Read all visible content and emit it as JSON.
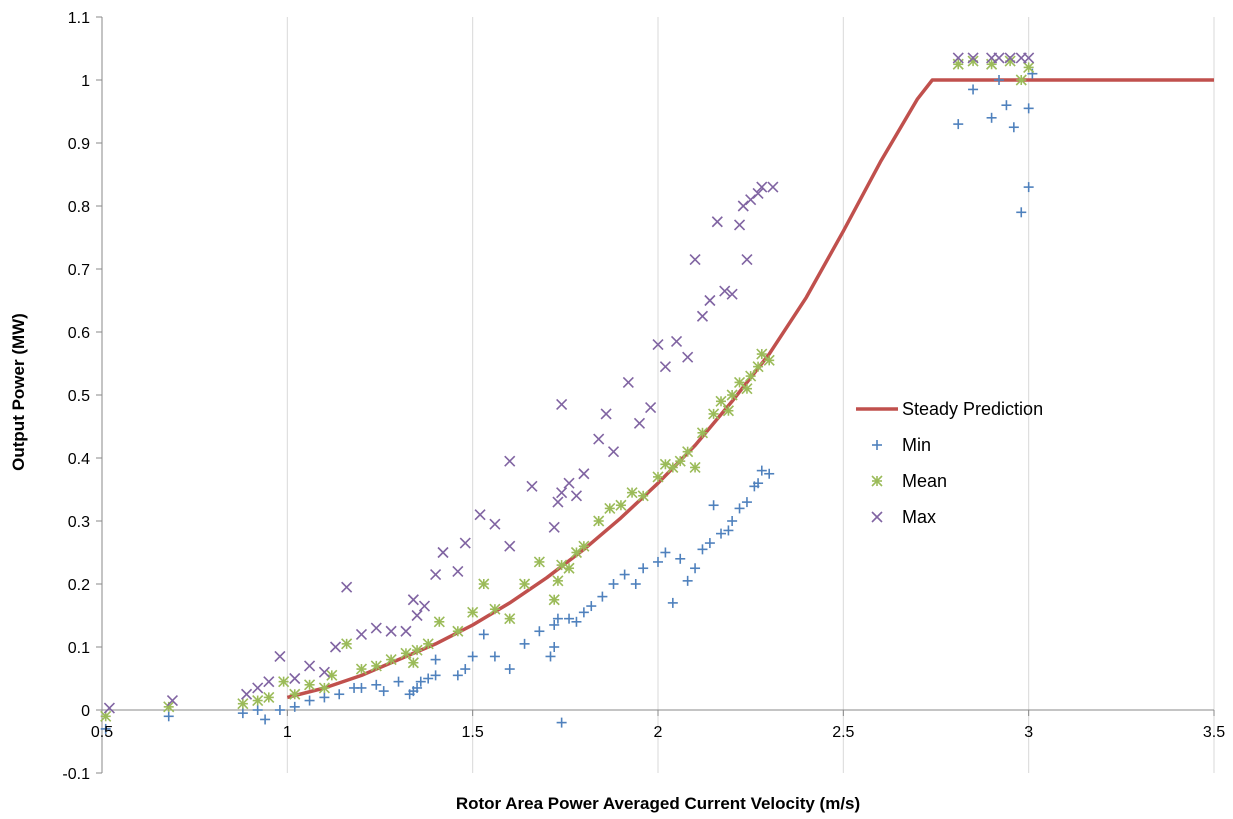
{
  "chart_data": {
    "type": "scatter",
    "title": "",
    "xlabel": "Rotor Area Power Averaged Current Velocity (m/s)",
    "ylabel": "Output Power (MW)",
    "xlim": [
      0.5,
      3.5
    ],
    "ylim": [
      -0.1,
      1.1
    ],
    "xticks": [
      "0.5",
      "1",
      "1.5",
      "2",
      "2.5",
      "3",
      "3.5"
    ],
    "yticks": [
      "-0.1",
      "0",
      "0.1",
      "0.2",
      "0.3",
      "0.4",
      "0.5",
      "0.6",
      "0.7",
      "0.8",
      "0.9",
      "1",
      "1.1"
    ],
    "grid": "vertical",
    "legend_position": "right-center",
    "series": [
      {
        "name": "Steady Prediction",
        "style": "line",
        "color": "#c0504d",
        "points": [
          [
            1.0,
            0.02
          ],
          [
            1.1,
            0.035
          ],
          [
            1.2,
            0.055
          ],
          [
            1.3,
            0.08
          ],
          [
            1.4,
            0.105
          ],
          [
            1.5,
            0.135
          ],
          [
            1.6,
            0.17
          ],
          [
            1.7,
            0.21
          ],
          [
            1.8,
            0.255
          ],
          [
            1.9,
            0.305
          ],
          [
            2.0,
            0.36
          ],
          [
            2.1,
            0.42
          ],
          [
            2.2,
            0.49
          ],
          [
            2.3,
            0.565
          ],
          [
            2.4,
            0.655
          ],
          [
            2.5,
            0.76
          ],
          [
            2.6,
            0.87
          ],
          [
            2.7,
            0.97
          ],
          [
            2.74,
            1.0
          ],
          [
            3.5,
            1.0
          ]
        ]
      },
      {
        "name": "Min",
        "style": "plus",
        "color": "#4f81bd",
        "points": [
          [
            0.51,
            -0.03
          ],
          [
            0.68,
            -0.01
          ],
          [
            0.88,
            -0.005
          ],
          [
            0.92,
            0.0
          ],
          [
            0.94,
            -0.015
          ],
          [
            0.98,
            0.0
          ],
          [
            1.02,
            0.005
          ],
          [
            1.06,
            0.015
          ],
          [
            1.1,
            0.02
          ],
          [
            1.14,
            0.025
          ],
          [
            1.18,
            0.035
          ],
          [
            1.2,
            0.035
          ],
          [
            1.24,
            0.04
          ],
          [
            1.26,
            0.03
          ],
          [
            1.3,
            0.045
          ],
          [
            1.33,
            0.025
          ],
          [
            1.34,
            0.03
          ],
          [
            1.35,
            0.035
          ],
          [
            1.36,
            0.045
          ],
          [
            1.38,
            0.05
          ],
          [
            1.4,
            0.055
          ],
          [
            1.4,
            0.08
          ],
          [
            1.46,
            0.055
          ],
          [
            1.48,
            0.065
          ],
          [
            1.5,
            0.085
          ],
          [
            1.53,
            0.12
          ],
          [
            1.56,
            0.085
          ],
          [
            1.6,
            0.065
          ],
          [
            1.64,
            0.105
          ],
          [
            1.68,
            0.125
          ],
          [
            1.71,
            0.085
          ],
          [
            1.72,
            0.1
          ],
          [
            1.72,
            0.135
          ],
          [
            1.73,
            0.145
          ],
          [
            1.74,
            -0.02
          ],
          [
            1.76,
            0.145
          ],
          [
            1.78,
            0.14
          ],
          [
            1.8,
            0.155
          ],
          [
            1.82,
            0.165
          ],
          [
            1.85,
            0.18
          ],
          [
            1.88,
            0.2
          ],
          [
            1.91,
            0.215
          ],
          [
            1.94,
            0.2
          ],
          [
            1.96,
            0.225
          ],
          [
            2.0,
            0.235
          ],
          [
            2.02,
            0.25
          ],
          [
            2.04,
            0.17
          ],
          [
            2.06,
            0.24
          ],
          [
            2.08,
            0.205
          ],
          [
            2.1,
            0.225
          ],
          [
            2.12,
            0.255
          ],
          [
            2.14,
            0.265
          ],
          [
            2.15,
            0.325
          ],
          [
            2.17,
            0.28
          ],
          [
            2.19,
            0.285
          ],
          [
            2.2,
            0.3
          ],
          [
            2.22,
            0.32
          ],
          [
            2.24,
            0.33
          ],
          [
            2.26,
            0.355
          ],
          [
            2.27,
            0.36
          ],
          [
            2.28,
            0.38
          ],
          [
            2.3,
            0.375
          ],
          [
            2.81,
            0.93
          ],
          [
            2.85,
            0.985
          ],
          [
            2.9,
            0.94
          ],
          [
            2.92,
            1.0
          ],
          [
            2.94,
            0.96
          ],
          [
            2.96,
            0.925
          ],
          [
            2.98,
            0.79
          ],
          [
            3.0,
            0.83
          ],
          [
            3.0,
            0.955
          ],
          [
            3.01,
            1.01
          ]
        ]
      },
      {
        "name": "Mean",
        "style": "asterisk",
        "color": "#9bbb59",
        "points": [
          [
            0.51,
            -0.01
          ],
          [
            0.68,
            0.005
          ],
          [
            0.88,
            0.01
          ],
          [
            0.92,
            0.015
          ],
          [
            0.95,
            0.02
          ],
          [
            0.99,
            0.045
          ],
          [
            1.02,
            0.025
          ],
          [
            1.06,
            0.04
          ],
          [
            1.1,
            0.035
          ],
          [
            1.12,
            0.055
          ],
          [
            1.16,
            0.105
          ],
          [
            1.2,
            0.065
          ],
          [
            1.24,
            0.07
          ],
          [
            1.28,
            0.08
          ],
          [
            1.32,
            0.09
          ],
          [
            1.34,
            0.075
          ],
          [
            1.35,
            0.095
          ],
          [
            1.38,
            0.105
          ],
          [
            1.41,
            0.14
          ],
          [
            1.46,
            0.125
          ],
          [
            1.5,
            0.155
          ],
          [
            1.53,
            0.2
          ],
          [
            1.56,
            0.16
          ],
          [
            1.6,
            0.145
          ],
          [
            1.64,
            0.2
          ],
          [
            1.68,
            0.235
          ],
          [
            1.72,
            0.175
          ],
          [
            1.73,
            0.205
          ],
          [
            1.74,
            0.23
          ],
          [
            1.76,
            0.225
          ],
          [
            1.78,
            0.25
          ],
          [
            1.8,
            0.26
          ],
          [
            1.84,
            0.3
          ],
          [
            1.87,
            0.32
          ],
          [
            1.9,
            0.325
          ],
          [
            1.93,
            0.345
          ],
          [
            1.96,
            0.34
          ],
          [
            2.0,
            0.37
          ],
          [
            2.02,
            0.39
          ],
          [
            2.04,
            0.385
          ],
          [
            2.06,
            0.395
          ],
          [
            2.08,
            0.41
          ],
          [
            2.1,
            0.385
          ],
          [
            2.12,
            0.44
          ],
          [
            2.15,
            0.47
          ],
          [
            2.17,
            0.49
          ],
          [
            2.19,
            0.475
          ],
          [
            2.2,
            0.5
          ],
          [
            2.22,
            0.52
          ],
          [
            2.24,
            0.51
          ],
          [
            2.25,
            0.53
          ],
          [
            2.27,
            0.545
          ],
          [
            2.28,
            0.565
          ],
          [
            2.3,
            0.555
          ],
          [
            2.81,
            1.025
          ],
          [
            2.85,
            1.03
          ],
          [
            2.9,
            1.025
          ],
          [
            2.95,
            1.03
          ],
          [
            2.98,
            1.0
          ],
          [
            3.0,
            1.02
          ]
        ]
      },
      {
        "name": "Max",
        "style": "cross",
        "color": "#8064a2",
        "points": [
          [
            0.52,
            0.003
          ],
          [
            0.69,
            0.015
          ],
          [
            0.89,
            0.025
          ],
          [
            0.92,
            0.035
          ],
          [
            0.95,
            0.045
          ],
          [
            0.98,
            0.085
          ],
          [
            1.02,
            0.05
          ],
          [
            1.06,
            0.07
          ],
          [
            1.1,
            0.06
          ],
          [
            1.13,
            0.1
          ],
          [
            1.16,
            0.195
          ],
          [
            1.2,
            0.12
          ],
          [
            1.24,
            0.13
          ],
          [
            1.28,
            0.125
          ],
          [
            1.32,
            0.125
          ],
          [
            1.34,
            0.175
          ],
          [
            1.35,
            0.15
          ],
          [
            1.37,
            0.165
          ],
          [
            1.4,
            0.215
          ],
          [
            1.42,
            0.25
          ],
          [
            1.46,
            0.22
          ],
          [
            1.48,
            0.265
          ],
          [
            1.52,
            0.31
          ],
          [
            1.56,
            0.295
          ],
          [
            1.6,
            0.26
          ],
          [
            1.6,
            0.395
          ],
          [
            1.66,
            0.355
          ],
          [
            1.72,
            0.29
          ],
          [
            1.73,
            0.33
          ],
          [
            1.74,
            0.345
          ],
          [
            1.74,
            0.485
          ],
          [
            1.76,
            0.36
          ],
          [
            1.78,
            0.34
          ],
          [
            1.8,
            0.375
          ],
          [
            1.84,
            0.43
          ],
          [
            1.86,
            0.47
          ],
          [
            1.88,
            0.41
          ],
          [
            1.92,
            0.52
          ],
          [
            1.95,
            0.455
          ],
          [
            1.98,
            0.48
          ],
          [
            2.0,
            0.58
          ],
          [
            2.02,
            0.545
          ],
          [
            2.05,
            0.585
          ],
          [
            2.08,
            0.56
          ],
          [
            2.1,
            0.715
          ],
          [
            2.12,
            0.625
          ],
          [
            2.14,
            0.65
          ],
          [
            2.16,
            0.775
          ],
          [
            2.18,
            0.665
          ],
          [
            2.2,
            0.66
          ],
          [
            2.22,
            0.77
          ],
          [
            2.23,
            0.8
          ],
          [
            2.24,
            0.715
          ],
          [
            2.25,
            0.81
          ],
          [
            2.27,
            0.82
          ],
          [
            2.28,
            0.83
          ],
          [
            2.31,
            0.83
          ],
          [
            2.81,
            1.035
          ],
          [
            2.85,
            1.035
          ],
          [
            2.9,
            1.035
          ],
          [
            2.92,
            1.035
          ],
          [
            2.95,
            1.035
          ],
          [
            2.98,
            1.035
          ],
          [
            3.0,
            1.035
          ]
        ]
      }
    ]
  }
}
